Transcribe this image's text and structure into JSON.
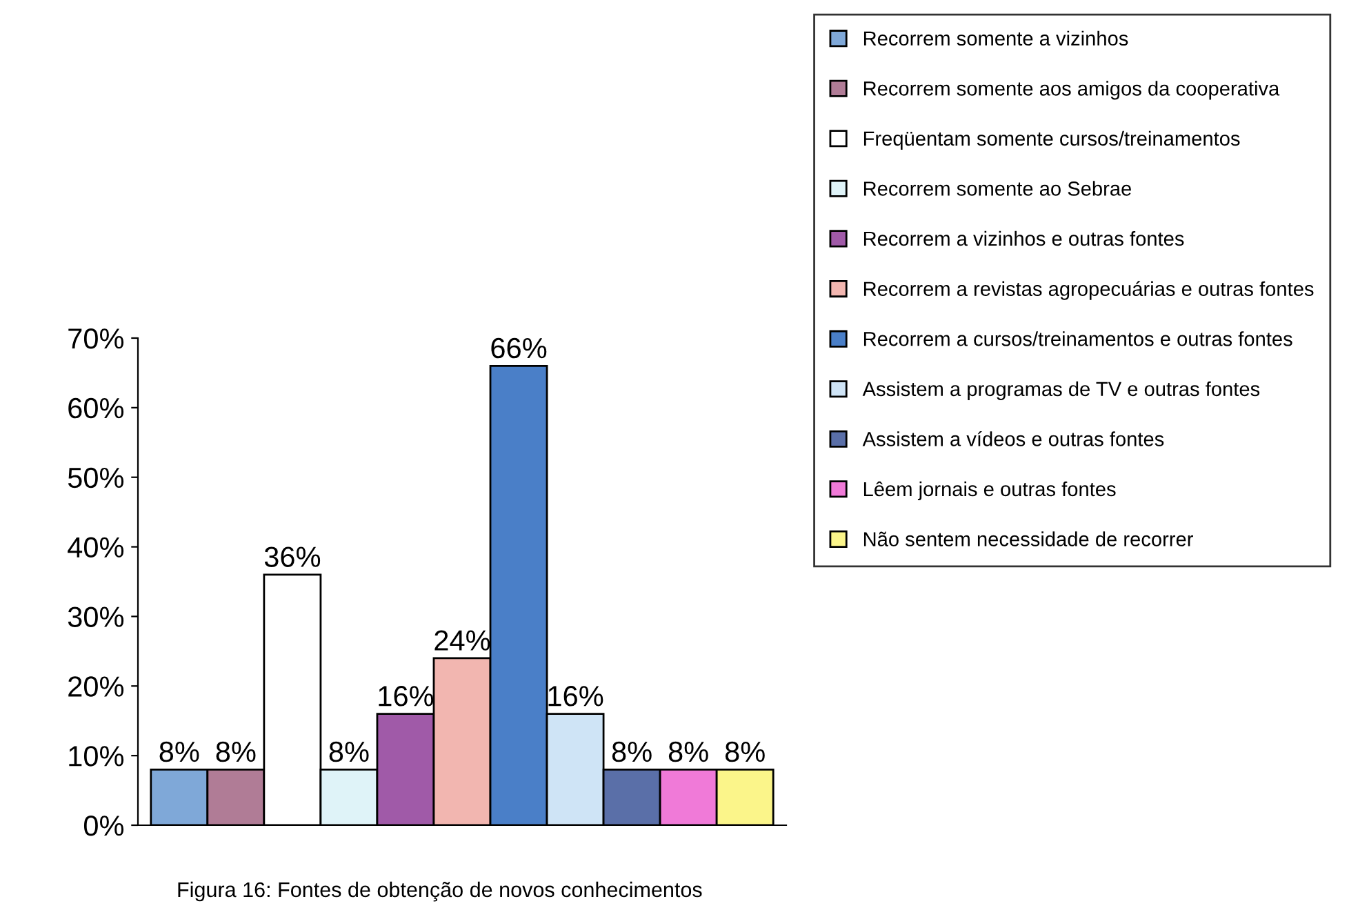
{
  "chart_data": {
    "type": "bar",
    "categories": [
      null
    ],
    "series": [
      {
        "name": "Recorrem somente a vizinhos",
        "color": "#7fa8d8",
        "values": [
          8
        ],
        "value_labels": [
          "8%"
        ]
      },
      {
        "name": "Recorrem somente aos amigos da cooperativa",
        "color": "#b07c96",
        "values": [
          8
        ],
        "value_labels": [
          "8%"
        ]
      },
      {
        "name": "Freqüentam somente cursos/treinamentos",
        "color": "#ffffff",
        "values": [
          36
        ],
        "value_labels": [
          "36%"
        ]
      },
      {
        "name": "Recorrem somente ao Sebrae",
        "color": "#dff3f8",
        "values": [
          8
        ],
        "value_labels": [
          "8%"
        ]
      },
      {
        "name": "Recorrem a vizinhos e outras fontes",
        "color": "#a05aa8",
        "values": [
          16
        ],
        "value_labels": [
          "16%"
        ]
      },
      {
        "name": "Recorrem a revistas agropecuárias e outras fontes",
        "color": "#f2b6b0",
        "values": [
          24
        ],
        "value_labels": [
          "24%"
        ]
      },
      {
        "name": "Recorrem a cursos/treinamentos e outras fontes",
        "color": "#4a7fc8",
        "values": [
          66
        ],
        "value_labels": [
          "66%"
        ]
      },
      {
        "name": "Assistem a programas de TV e outras fontes",
        "color": "#cfe4f6",
        "values": [
          16
        ],
        "value_labels": [
          "16%"
        ]
      },
      {
        "name": "Assistem a vídeos e outras fontes",
        "color": "#5a6fa8",
        "values": [
          8
        ],
        "value_labels": [
          "8%"
        ]
      },
      {
        "name": "Lêem jornais e outras fontes",
        "color": "#f07ad8",
        "values": [
          8
        ],
        "value_labels": [
          "8%"
        ]
      },
      {
        "name": "Não sentem necessidade de recorrer",
        "color": "#fbf58a",
        "values": [
          8
        ],
        "value_labels": [
          "8%"
        ]
      }
    ],
    "ylim": [
      0,
      70
    ],
    "yticks": [
      {
        "value": 0,
        "label": "0%"
      },
      {
        "value": 10,
        "label": "10%"
      },
      {
        "value": 20,
        "label": "20%"
      },
      {
        "value": 30,
        "label": "30%"
      },
      {
        "value": 40,
        "label": "40%"
      },
      {
        "value": 50,
        "label": "50%"
      },
      {
        "value": 60,
        "label": "60%"
      },
      {
        "value": 70,
        "label": "70%"
      }
    ],
    "grid": false,
    "legend": "right",
    "annotations": [
      "Figura 16: Fontes de obtenção de novos conhecimentos"
    ]
  }
}
